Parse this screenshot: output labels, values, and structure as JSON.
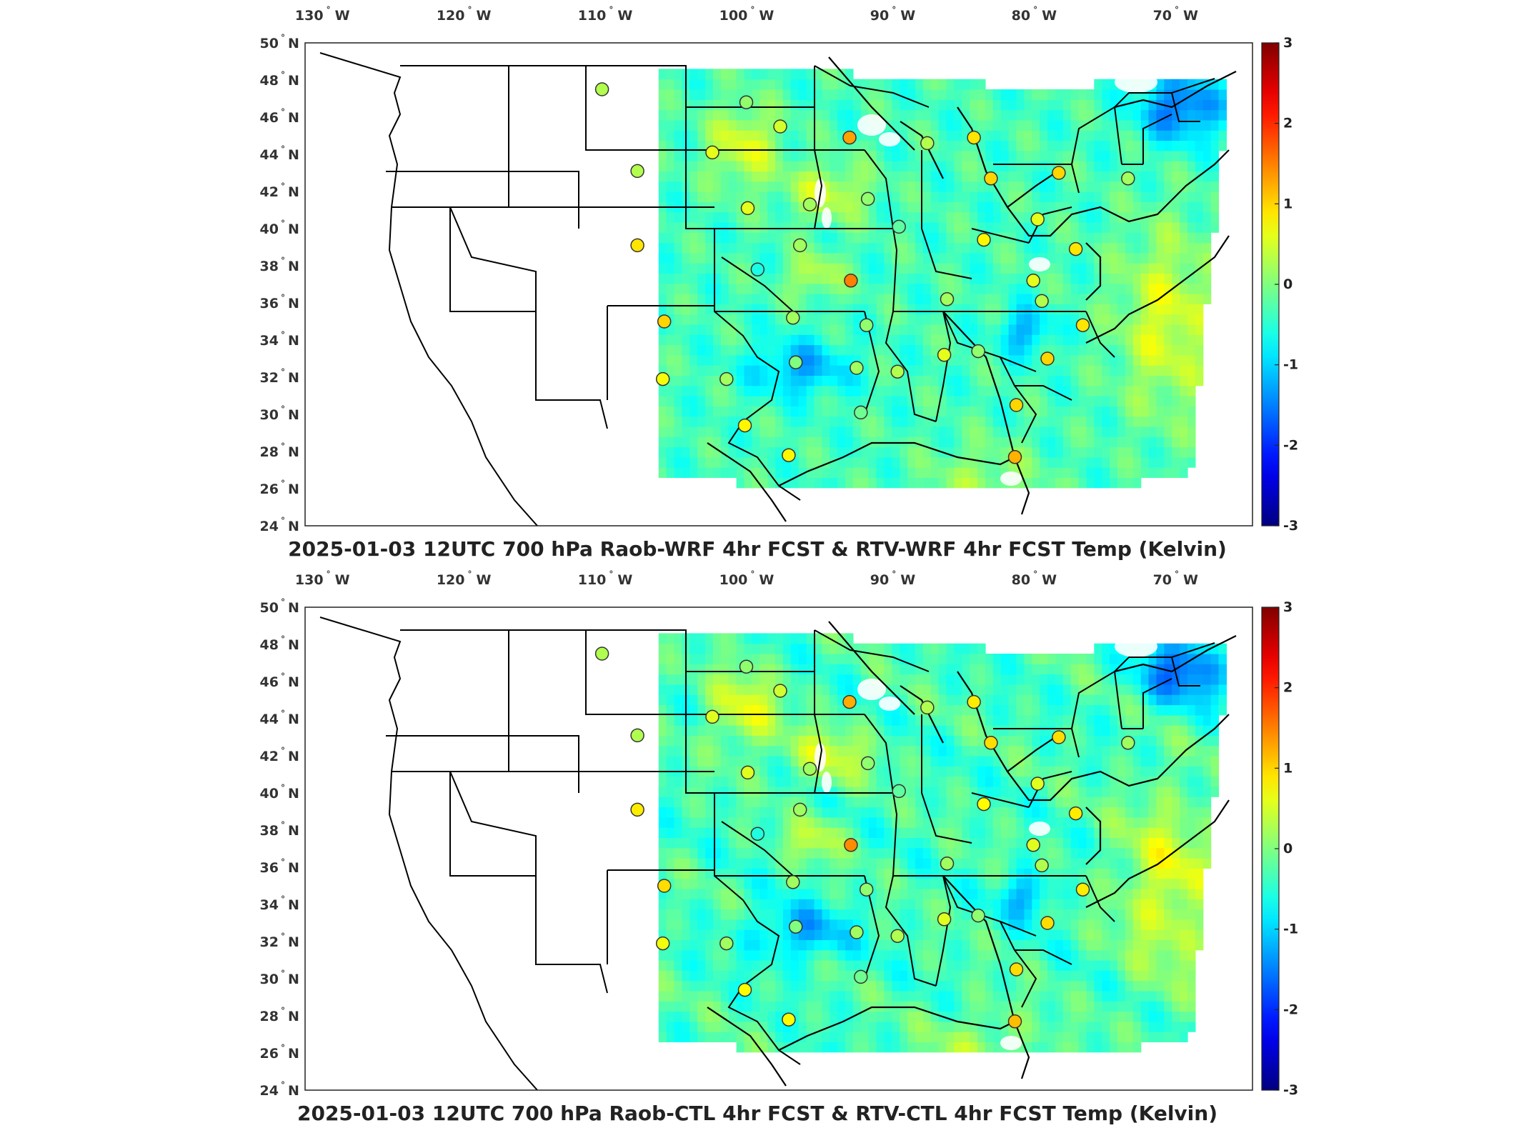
{
  "panels": [
    {
      "title": "2025-01-03 12UTC 700 hPa Raob-WRF 4hr FCST & RTV-WRF 4hr FCST Temp (Kelvin)"
    },
    {
      "title": "2025-01-03 12UTC 700 hPa Raob-CTL 4hr FCST & RTV-CTL 4hr FCST Temp (Kelvin)"
    }
  ],
  "lon_labels": [
    {
      "value": "130",
      "hemi": "W"
    },
    {
      "value": "120",
      "hemi": "W"
    },
    {
      "value": "110",
      "hemi": "W"
    },
    {
      "value": "100",
      "hemi": "W"
    },
    {
      "value": "90",
      "hemi": "W"
    },
    {
      "value": "80",
      "hemi": "W"
    },
    {
      "value": "70",
      "hemi": "W"
    }
  ],
  "lat_labels": [
    {
      "value": "50",
      "hemi": "N"
    },
    {
      "value": "48",
      "hemi": "N"
    },
    {
      "value": "46",
      "hemi": "N"
    },
    {
      "value": "44",
      "hemi": "N"
    },
    {
      "value": "42",
      "hemi": "N"
    },
    {
      "value": "40",
      "hemi": "N"
    },
    {
      "value": "38",
      "hemi": "N"
    },
    {
      "value": "36",
      "hemi": "N"
    },
    {
      "value": "34",
      "hemi": "N"
    },
    {
      "value": "32",
      "hemi": "N"
    },
    {
      "value": "30",
      "hemi": "N"
    },
    {
      "value": "28",
      "hemi": "N"
    },
    {
      "value": "26",
      "hemi": "N"
    },
    {
      "value": "24",
      "hemi": "N"
    }
  ],
  "colorbar": {
    "labels": [
      "3",
      "2",
      "1",
      "0",
      "-1",
      "-2",
      "-3"
    ],
    "min": -3,
    "max": 3
  },
  "colors": {
    "cold": "#1a5cff",
    "cool": "#27c6f0",
    "neutral": "#7fe07a",
    "warm": "#f5e63a",
    "hot": "#f57f1f"
  },
  "stations": [
    {
      "lon": -111.0,
      "lat": 47.5,
      "v": 0.3
    },
    {
      "lon": -108.5,
      "lat": 43.1,
      "v": 0.3
    },
    {
      "lon": -100.8,
      "lat": 46.8,
      "v": 0.1
    },
    {
      "lon": -98.4,
      "lat": 45.5,
      "v": 0.5
    },
    {
      "lon": -103.2,
      "lat": 44.1,
      "v": 0.6
    },
    {
      "lon": -93.5,
      "lat": 44.9,
      "v": 1.3
    },
    {
      "lon": -88.0,
      "lat": 44.6,
      "v": 0.3
    },
    {
      "lon": -84.7,
      "lat": 44.9,
      "v": 0.9
    },
    {
      "lon": -83.5,
      "lat": 42.7,
      "v": 1.0
    },
    {
      "lon": -78.7,
      "lat": 43.0,
      "v": 1.0
    },
    {
      "lon": -73.8,
      "lat": 42.7,
      "v": 0.2
    },
    {
      "lon": -100.7,
      "lat": 41.1,
      "v": 0.6
    },
    {
      "lon": -96.3,
      "lat": 41.3,
      "v": 0.2
    },
    {
      "lon": -92.2,
      "lat": 41.6,
      "v": 0.1
    },
    {
      "lon": -90.0,
      "lat": 40.1,
      "v": -0.2
    },
    {
      "lon": -84.0,
      "lat": 39.4,
      "v": 0.8
    },
    {
      "lon": -80.2,
      "lat": 40.5,
      "v": 0.6
    },
    {
      "lon": -108.5,
      "lat": 39.1,
      "v": 0.9
    },
    {
      "lon": -97.0,
      "lat": 39.1,
      "v": 0.2
    },
    {
      "lon": -100.0,
      "lat": 37.8,
      "v": -0.6
    },
    {
      "lon": -93.4,
      "lat": 37.2,
      "v": 1.5
    },
    {
      "lon": -86.6,
      "lat": 36.2,
      "v": 0.2
    },
    {
      "lon": -80.5,
      "lat": 37.2,
      "v": 0.6
    },
    {
      "lon": -77.5,
      "lat": 38.9,
      "v": 0.9
    },
    {
      "lon": -79.9,
      "lat": 36.1,
      "v": 0.3
    },
    {
      "lon": -106.6,
      "lat": 35.0,
      "v": 1.0
    },
    {
      "lon": -97.5,
      "lat": 35.2,
      "v": 0.2
    },
    {
      "lon": -92.3,
      "lat": 34.8,
      "v": 0.1
    },
    {
      "lon": -77.0,
      "lat": 34.8,
      "v": 0.9
    },
    {
      "lon": -106.7,
      "lat": 31.9,
      "v": 0.7
    },
    {
      "lon": -102.2,
      "lat": 31.9,
      "v": 0.2
    },
    {
      "lon": -97.3,
      "lat": 32.8,
      "v": 0.0
    },
    {
      "lon": -93.0,
      "lat": 32.5,
      "v": 0.2
    },
    {
      "lon": -90.1,
      "lat": 32.3,
      "v": 0.3
    },
    {
      "lon": -86.8,
      "lat": 33.2,
      "v": 0.6
    },
    {
      "lon": -84.4,
      "lat": 33.4,
      "v": 0.1
    },
    {
      "lon": -79.5,
      "lat": 33.0,
      "v": 1.0
    },
    {
      "lon": -100.9,
      "lat": 29.4,
      "v": 0.8
    },
    {
      "lon": -97.8,
      "lat": 27.8,
      "v": 0.8
    },
    {
      "lon": -92.7,
      "lat": 30.1,
      "v": -0.1
    },
    {
      "lon": -81.7,
      "lat": 30.5,
      "v": 1.0
    },
    {
      "lon": -81.8,
      "lat": 27.7,
      "v": 1.2
    }
  ]
}
